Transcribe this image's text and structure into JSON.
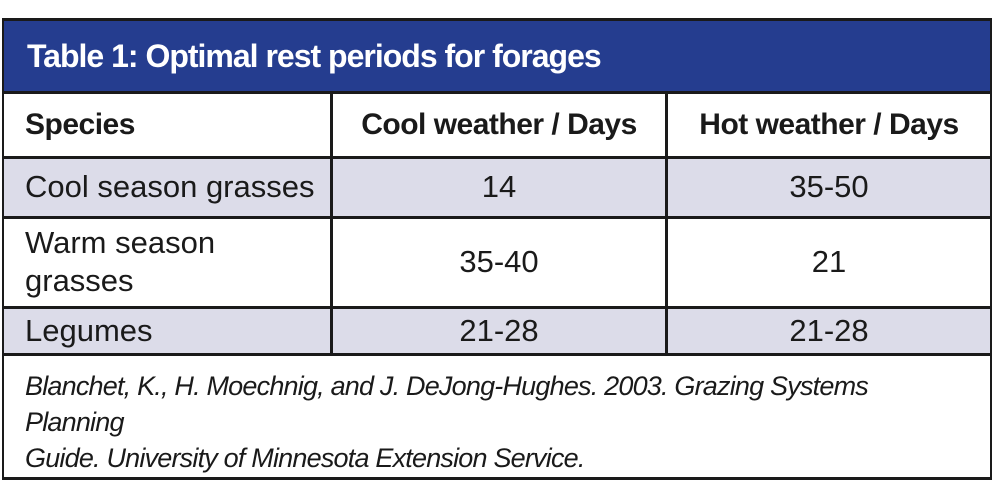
{
  "title": "Table 1: Optimal rest periods for forages",
  "table": {
    "columns": [
      "Species",
      "Cool weather / Days",
      "Hot weather / Days"
    ],
    "rows": [
      {
        "species": "Cool season grasses",
        "cool": "14",
        "hot": "35-50"
      },
      {
        "species": "Warm season grasses",
        "cool": "35-40",
        "hot": "21"
      },
      {
        "species": "Legumes",
        "cool": "21-28",
        "hot": "21-28"
      }
    ]
  },
  "citation": {
    "line1": "Blanchet, K., H. Moechnig, and J. DeJong-Hughes. 2003. Grazing Systems Planning",
    "line2": "Guide. University of Minnesota Extension Service."
  },
  "colors": {
    "header_bg": "#253d8f",
    "row_alt_bg": "#dcdce9",
    "border": "#1a1a1a",
    "title_text": "#ffffff"
  }
}
